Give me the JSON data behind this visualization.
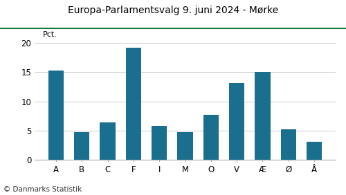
{
  "title": "Europa-Parlamentsvalg 9. juni 2024 - Mørke",
  "categories": [
    "A",
    "B",
    "C",
    "F",
    "I",
    "M",
    "O",
    "V",
    "Æ",
    "Ø",
    "Å"
  ],
  "values": [
    15.3,
    4.7,
    6.4,
    19.2,
    5.8,
    4.7,
    7.7,
    13.1,
    15.0,
    5.2,
    3.1
  ],
  "bar_color": "#1a6e8e",
  "ylim": [
    0,
    20
  ],
  "yticks": [
    0,
    5,
    10,
    15,
    20
  ],
  "ylabel": "Pct.",
  "background_color": "#ffffff",
  "title_fontsize": 10,
  "footer": "© Danmarks Statistik",
  "top_line_color": "#1a7a3c",
  "grid_color": "#cccccc"
}
